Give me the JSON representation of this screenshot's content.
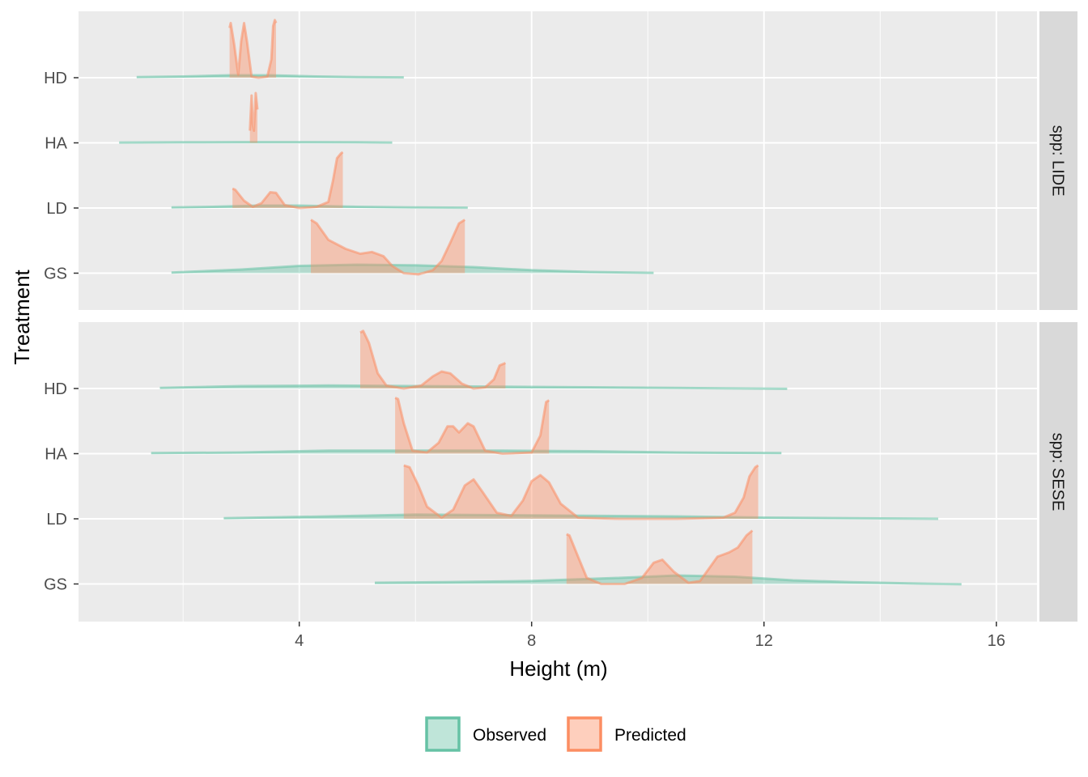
{
  "chart_data": {
    "type": "area",
    "subtype": "ridgeline-density",
    "xlabel": "Height (m)",
    "ylabel": "Treatment",
    "xlim": [
      0.2,
      16.7
    ],
    "x_ticks": [
      4,
      8,
      12,
      16
    ],
    "x_tick_labels": [
      "4",
      "8",
      "12",
      "16"
    ],
    "categories": [
      "GS",
      "LD",
      "HA",
      "HD"
    ],
    "grid": true,
    "legend_position": "bottom",
    "legend": [
      {
        "name": "Observed",
        "color": "#66c2a5"
      },
      {
        "name": "Predicted",
        "color": "#fc8d62"
      }
    ],
    "panels": [
      {
        "strip": "spp: LIDE",
        "ridges": [
          {
            "treatment": "HD",
            "observed": {
              "range": [
                1.2,
                5.8
              ],
              "points": [
                [
                  1.2,
                  0.01
                ],
                [
                  2.0,
                  0.02
                ],
                [
                  2.8,
                  0.04
                ],
                [
                  3.5,
                  0.04
                ],
                [
                  4.3,
                  0.02
                ],
                [
                  5.0,
                  0.01
                ],
                [
                  5.8,
                  0.005
                ]
              ]
            },
            "predicted": {
              "range": [
                2.8,
                3.6
              ],
              "points": [
                [
                  2.8,
                  0.82
                ],
                [
                  2.82,
                  0.9
                ],
                [
                  2.88,
                  0.55
                ],
                [
                  2.95,
                  0.05
                ],
                [
                  3.0,
                  0.6
                ],
                [
                  3.05,
                  0.9
                ],
                [
                  3.1,
                  0.6
                ],
                [
                  3.18,
                  0.02
                ],
                [
                  3.3,
                  0.0
                ],
                [
                  3.45,
                  0.02
                ],
                [
                  3.52,
                  0.3
                ],
                [
                  3.55,
                  0.85
                ],
                [
                  3.58,
                  0.95
                ],
                [
                  3.6,
                  0.9
                ]
              ]
            }
          },
          {
            "treatment": "HA",
            "observed": {
              "range": [
                0.9,
                5.6
              ],
              "points": [
                [
                  0.9,
                  0.005
                ],
                [
                  2.0,
                  0.01
                ],
                [
                  3.0,
                  0.012
                ],
                [
                  4.0,
                  0.012
                ],
                [
                  5.0,
                  0.01
                ],
                [
                  5.6,
                  0.005
                ]
              ]
            },
            "predicted": {
              "range": [
                3.15,
                3.28
              ],
              "points": [
                [
                  3.15,
                  0.2
                ],
                [
                  3.18,
                  0.78
                ],
                [
                  3.2,
                  0.3
                ],
                [
                  3.22,
                  0.2
                ],
                [
                  3.25,
                  0.82
                ],
                [
                  3.28,
                  0.55
                ]
              ]
            }
          },
          {
            "treatment": "LD",
            "observed": {
              "range": [
                1.8,
                6.9
              ],
              "points": [
                [
                  1.8,
                  0.01
                ],
                [
                  2.5,
                  0.02
                ],
                [
                  3.3,
                  0.04
                ],
                [
                  4.0,
                  0.04
                ],
                [
                  5.0,
                  0.02
                ],
                [
                  6.0,
                  0.01
                ],
                [
                  6.9,
                  0.005
                ]
              ]
            },
            "predicted": {
              "range": [
                2.85,
                4.75
              ],
              "points": [
                [
                  2.85,
                  0.32
                ],
                [
                  2.9,
                  0.3
                ],
                [
                  3.05,
                  0.12
                ],
                [
                  3.2,
                  0.02
                ],
                [
                  3.35,
                  0.08
                ],
                [
                  3.5,
                  0.26
                ],
                [
                  3.6,
                  0.25
                ],
                [
                  3.75,
                  0.05
                ],
                [
                  4.0,
                  0.0
                ],
                [
                  4.3,
                  0.02
                ],
                [
                  4.5,
                  0.1
                ],
                [
                  4.58,
                  0.45
                ],
                [
                  4.65,
                  0.82
                ],
                [
                  4.72,
                  0.9
                ],
                [
                  4.75,
                  0.92
                ]
              ]
            }
          },
          {
            "treatment": "GS",
            "observed": {
              "range": [
                1.8,
                10.1
              ],
              "points": [
                [
                  1.8,
                  0.01
                ],
                [
                  3.0,
                  0.06
                ],
                [
                  4.0,
                  0.12
                ],
                [
                  5.0,
                  0.14
                ],
                [
                  6.0,
                  0.13
                ],
                [
                  7.0,
                  0.1
                ],
                [
                  8.0,
                  0.05
                ],
                [
                  9.0,
                  0.02
                ],
                [
                  10.1,
                  0.005
                ]
              ]
            },
            "predicted": {
              "range": [
                4.2,
                6.85
              ],
              "points": [
                [
                  4.2,
                  0.88
                ],
                [
                  4.3,
                  0.82
                ],
                [
                  4.5,
                  0.55
                ],
                [
                  4.8,
                  0.4
                ],
                [
                  5.05,
                  0.32
                ],
                [
                  5.25,
                  0.35
                ],
                [
                  5.45,
                  0.28
                ],
                [
                  5.6,
                  0.12
                ],
                [
                  5.8,
                  0.0
                ],
                [
                  6.05,
                  -0.02
                ],
                [
                  6.3,
                  0.05
                ],
                [
                  6.45,
                  0.2
                ],
                [
                  6.6,
                  0.5
                ],
                [
                  6.75,
                  0.82
                ],
                [
                  6.85,
                  0.88
                ]
              ]
            }
          }
        ]
      },
      {
        "strip": "spp: SESE",
        "ridges": [
          {
            "treatment": "HD",
            "observed": {
              "range": [
                1.6,
                12.4
              ],
              "points": [
                [
                  1.6,
                  0.01
                ],
                [
                  3.0,
                  0.04
                ],
                [
                  4.5,
                  0.05
                ],
                [
                  6.0,
                  0.04
                ],
                [
                  7.5,
                  0.03
                ],
                [
                  9.0,
                  0.02
                ],
                [
                  10.5,
                  0.01
                ],
                [
                  12.4,
                  -0.005
                ]
              ]
            },
            "predicted": {
              "range": [
                5.05,
                7.55
              ],
              "points": [
                [
                  5.05,
                  0.92
                ],
                [
                  5.1,
                  0.95
                ],
                [
                  5.2,
                  0.75
                ],
                [
                  5.35,
                  0.25
                ],
                [
                  5.5,
                  0.05
                ],
                [
                  5.8,
                  0.0
                ],
                [
                  6.1,
                  0.05
                ],
                [
                  6.3,
                  0.2
                ],
                [
                  6.45,
                  0.28
                ],
                [
                  6.6,
                  0.25
                ],
                [
                  6.8,
                  0.08
                ],
                [
                  7.0,
                  0.0
                ],
                [
                  7.2,
                  0.02
                ],
                [
                  7.35,
                  0.15
                ],
                [
                  7.45,
                  0.38
                ],
                [
                  7.55,
                  0.42
                ]
              ]
            }
          },
          {
            "treatment": "HA",
            "observed": {
              "range": [
                1.45,
                12.3
              ],
              "points": [
                [
                  1.45,
                  0.01
                ],
                [
                  3.0,
                  0.02
                ],
                [
                  4.5,
                  0.05
                ],
                [
                  6.0,
                  0.05
                ],
                [
                  7.5,
                  0.05
                ],
                [
                  9.0,
                  0.04
                ],
                [
                  10.5,
                  0.02
                ],
                [
                  12.3,
                  0.01
                ]
              ]
            },
            "predicted": {
              "range": [
                5.65,
                8.3
              ],
              "points": [
                [
                  5.65,
                  0.92
                ],
                [
                  5.7,
                  0.9
                ],
                [
                  5.8,
                  0.5
                ],
                [
                  5.95,
                  0.05
                ],
                [
                  6.2,
                  0.02
                ],
                [
                  6.4,
                  0.18
                ],
                [
                  6.55,
                  0.45
                ],
                [
                  6.65,
                  0.45
                ],
                [
                  6.75,
                  0.35
                ],
                [
                  6.9,
                  0.5
                ],
                [
                  7.0,
                  0.45
                ],
                [
                  7.2,
                  0.05
                ],
                [
                  7.5,
                  0.0
                ],
                [
                  8.0,
                  0.02
                ],
                [
                  8.15,
                  0.3
                ],
                [
                  8.25,
                  0.85
                ],
                [
                  8.3,
                  0.88
                ]
              ]
            }
          },
          {
            "treatment": "LD",
            "observed": {
              "range": [
                2.7,
                15.0
              ],
              "points": [
                [
                  2.7,
                  0.01
                ],
                [
                  4.5,
                  0.04
                ],
                [
                  6.0,
                  0.07
                ],
                [
                  7.5,
                  0.06
                ],
                [
                  9.0,
                  0.05
                ],
                [
                  10.5,
                  0.04
                ],
                [
                  12.0,
                  0.02
                ],
                [
                  13.5,
                  0.01
                ],
                [
                  15.0,
                  0.0
                ]
              ]
            },
            "predicted": {
              "range": [
                5.8,
                11.9
              ],
              "points": [
                [
                  5.8,
                  0.88
                ],
                [
                  5.9,
                  0.85
                ],
                [
                  6.05,
                  0.55
                ],
                [
                  6.2,
                  0.2
                ],
                [
                  6.45,
                  0.02
                ],
                [
                  6.65,
                  0.15
                ],
                [
                  6.85,
                  0.55
                ],
                [
                  7.0,
                  0.65
                ],
                [
                  7.15,
                  0.45
                ],
                [
                  7.4,
                  0.1
                ],
                [
                  7.65,
                  0.05
                ],
                [
                  7.85,
                  0.3
                ],
                [
                  8.0,
                  0.62
                ],
                [
                  8.15,
                  0.72
                ],
                [
                  8.3,
                  0.6
                ],
                [
                  8.5,
                  0.25
                ],
                [
                  8.8,
                  0.02
                ],
                [
                  9.5,
                  0.0
                ],
                [
                  10.5,
                  0.0
                ],
                [
                  11.3,
                  0.02
                ],
                [
                  11.5,
                  0.1
                ],
                [
                  11.65,
                  0.35
                ],
                [
                  11.75,
                  0.7
                ],
                [
                  11.85,
                  0.85
                ],
                [
                  11.9,
                  0.88
                ]
              ]
            }
          },
          {
            "treatment": "GS",
            "observed": {
              "range": [
                5.3,
                15.4
              ],
              "points": [
                [
                  5.3,
                  0.02
                ],
                [
                  6.5,
                  0.03
                ],
                [
                  8.0,
                  0.05
                ],
                [
                  9.5,
                  0.1
                ],
                [
                  10.5,
                  0.14
                ],
                [
                  11.5,
                  0.12
                ],
                [
                  12.5,
                  0.06
                ],
                [
                  13.5,
                  0.03
                ],
                [
                  14.5,
                  0.01
                ],
                [
                  15.4,
                  -0.005
                ]
              ]
            },
            "predicted": {
              "range": [
                8.6,
                11.8
              ],
              "points": [
                [
                  8.6,
                  0.82
                ],
                [
                  8.65,
                  0.8
                ],
                [
                  8.8,
                  0.45
                ],
                [
                  8.95,
                  0.1
                ],
                [
                  9.2,
                  0.0
                ],
                [
                  9.6,
                  0.0
                ],
                [
                  9.9,
                  0.1
                ],
                [
                  10.1,
                  0.35
                ],
                [
                  10.25,
                  0.4
                ],
                [
                  10.45,
                  0.2
                ],
                [
                  10.7,
                  0.02
                ],
                [
                  10.9,
                  0.05
                ],
                [
                  11.05,
                  0.25
                ],
                [
                  11.2,
                  0.45
                ],
                [
                  11.4,
                  0.52
                ],
                [
                  11.55,
                  0.6
                ],
                [
                  11.7,
                  0.8
                ],
                [
                  11.8,
                  0.88
                ]
              ]
            }
          }
        ]
      }
    ]
  }
}
